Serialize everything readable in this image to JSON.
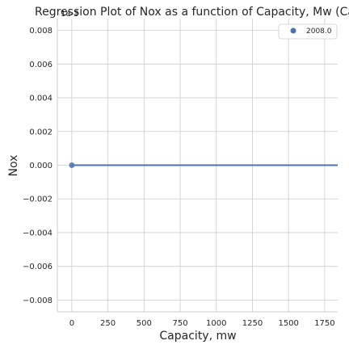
{
  "chart_data": {
    "type": "scatter",
    "title": "Regression Plot of Nox as a function of Capacity, Mw (Cambod",
    "title_overlap_text": "1e-3",
    "xlabel": "Capacity, mw",
    "ylabel": "Nox",
    "xlim": [
      -100,
      1840
    ],
    "ylim": [
      -0.0087,
      0.0087
    ],
    "xticks": [
      0,
      250,
      500,
      750,
      1000,
      1250,
      1500,
      1750
    ],
    "yticks": [
      -0.008,
      -0.006,
      -0.004,
      -0.002,
      0.0,
      0.002,
      0.004,
      0.006,
      0.008
    ],
    "xtick_labels": [
      "0",
      "250",
      "500",
      "750",
      "1000",
      "1250",
      "1500",
      "1750"
    ],
    "ytick_labels": [
      "−0.008",
      "−0.006",
      "−0.004",
      "−0.002",
      "0.000",
      "0.002",
      "0.004",
      "0.006",
      "0.008"
    ],
    "grid": true,
    "legend_placement": "top-right",
    "series": [
      {
        "name": "2008.0",
        "color": "#4c72b0",
        "points": [
          {
            "x": 0,
            "y": 0.0
          }
        ],
        "regression_line": {
          "x_start": 0,
          "x_end": 1840,
          "y": 0.0
        }
      }
    ]
  }
}
